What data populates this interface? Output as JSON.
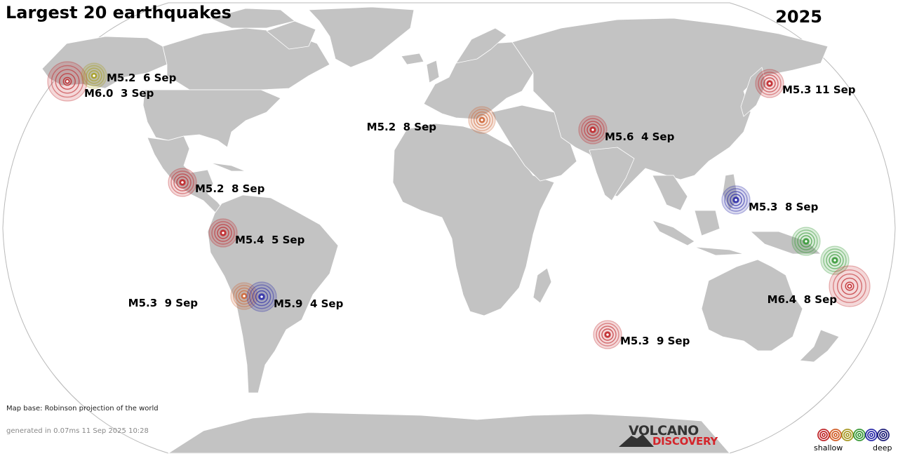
{
  "title": "Largest 20 earthquakes",
  "year": "2025",
  "notes": {
    "map_base": "Map base: Robinson projection of the world",
    "generated": "generated in 0.07ms 11 Sep 2025 10:28"
  },
  "logo": {
    "line1": "VOLCANO",
    "line2": "DISCOVERY"
  },
  "legend": {
    "shallow_label": "shallow",
    "deep_label": "deep",
    "colors": [
      "#c0282c",
      "#d2602a",
      "#a89a26",
      "#3a9a3a",
      "#2c2caa",
      "#20207a"
    ]
  },
  "colors": {
    "land": "#c3c3c3",
    "border": "#ffffff",
    "outline": "#b9b9b9",
    "shallow": "#c0282c",
    "mid_shallow": "#cf6a3c",
    "intermediate": "#a8a028",
    "mid": "#3a9a3a",
    "deep": "#2c2ca8"
  },
  "earthquakes": [
    {
      "id": "alaska-1",
      "label": "M6.0  3 Sep",
      "magnitude": 6.0,
      "date": "3 Sep",
      "color": "shallow"
    },
    {
      "id": "alaska-2",
      "label": "M5.2  6 Sep",
      "magnitude": 5.2,
      "date": "6 Sep",
      "color": "intermediate"
    },
    {
      "id": "japan",
      "label": "M5.3 11 Sep",
      "magnitude": 5.3,
      "date": "11 Sep",
      "color": "shallow"
    },
    {
      "id": "greece",
      "label": "M5.2  8 Sep",
      "magnitude": 5.2,
      "date": "8 Sep",
      "color": "mid_shallow"
    },
    {
      "id": "afghanistan",
      "label": "M5.6  4 Sep",
      "magnitude": 5.6,
      "date": "4 Sep",
      "color": "shallow"
    },
    {
      "id": "mexico",
      "label": "M5.2  8 Sep",
      "magnitude": 5.2,
      "date": "8 Sep",
      "color": "shallow"
    },
    {
      "id": "philippines",
      "label": "M5.3  8 Sep",
      "magnitude": 5.3,
      "date": "8 Sep",
      "color": "deep"
    },
    {
      "id": "peru",
      "label": "M5.4  5 Sep",
      "magnitude": 5.4,
      "date": "5 Sep",
      "color": "shallow"
    },
    {
      "id": "bolivia-1",
      "label": "M5.3  9 Sep",
      "magnitude": 5.3,
      "date": "9 Sep",
      "color": "mid_shallow"
    },
    {
      "id": "bolivia-2",
      "label": "M5.9  4 Sep",
      "magnitude": 5.9,
      "date": "4 Sep",
      "color": "deep"
    },
    {
      "id": "png-1",
      "label": "",
      "magnitude": null,
      "date": "",
      "color": "mid"
    },
    {
      "id": "png-2",
      "label": "",
      "magnitude": null,
      "date": "",
      "color": "mid"
    },
    {
      "id": "vanuatu",
      "label": "M6.4  8 Sep",
      "magnitude": 6.4,
      "date": "8 Sep",
      "color": "shallow"
    },
    {
      "id": "indian-ocean",
      "label": "M5.3  9 Sep",
      "magnitude": 5.3,
      "date": "9 Sep",
      "color": "shallow"
    }
  ]
}
